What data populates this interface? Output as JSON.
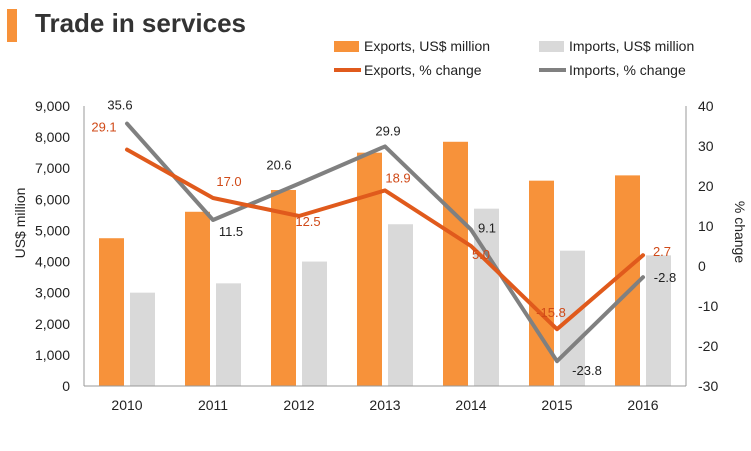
{
  "title": "Trade in services",
  "chart_data": {
    "type": "bar",
    "title": "Trade in services",
    "categories": [
      "2010",
      "2011",
      "2012",
      "2013",
      "2014",
      "2015",
      "2016"
    ],
    "series": [
      {
        "name": "Exports, US$ million",
        "type": "bar",
        "axis": "left",
        "color": "#f7923a",
        "values": [
          4750,
          5600,
          6300,
          7500,
          7850,
          6600,
          6770
        ]
      },
      {
        "name": "Imports, US$ million",
        "type": "bar",
        "axis": "left",
        "color": "#d9d9d9",
        "values": [
          3000,
          3300,
          4000,
          5200,
          5700,
          4350,
          4200
        ]
      },
      {
        "name": "Exports, % change",
        "type": "line",
        "axis": "right",
        "color": "#e05a1c",
        "values": [
          29.1,
          17.0,
          12.5,
          18.9,
          5.0,
          -15.8,
          2.7
        ],
        "labels": [
          "29.1",
          "17.0",
          "12.5",
          "18.9",
          "5.0",
          "-15.8",
          "2.7"
        ]
      },
      {
        "name": "Imports, % change",
        "type": "line",
        "axis": "right",
        "color": "#808080",
        "values": [
          35.6,
          11.5,
          20.6,
          29.9,
          9.1,
          -23.8,
          -2.8
        ],
        "labels": [
          "35.6",
          "11.5",
          "20.6",
          "29.9",
          "9.1",
          "-23.8",
          "-2.8"
        ]
      }
    ],
    "ylabel": "US$ million",
    "y2label": "% change",
    "ylim": [
      0,
      9000
    ],
    "y2lim": [
      -30,
      40
    ],
    "yticks": [
      "0",
      "1,000",
      "2,000",
      "3,000",
      "4,000",
      "5,000",
      "6,000",
      "7,000",
      "8,000",
      "9,000"
    ],
    "y2ticks": [
      "-30",
      "-20",
      "-10",
      "0",
      "10",
      "20",
      "30",
      "40"
    ],
    "legend_position": "top-right",
    "grid": false
  }
}
